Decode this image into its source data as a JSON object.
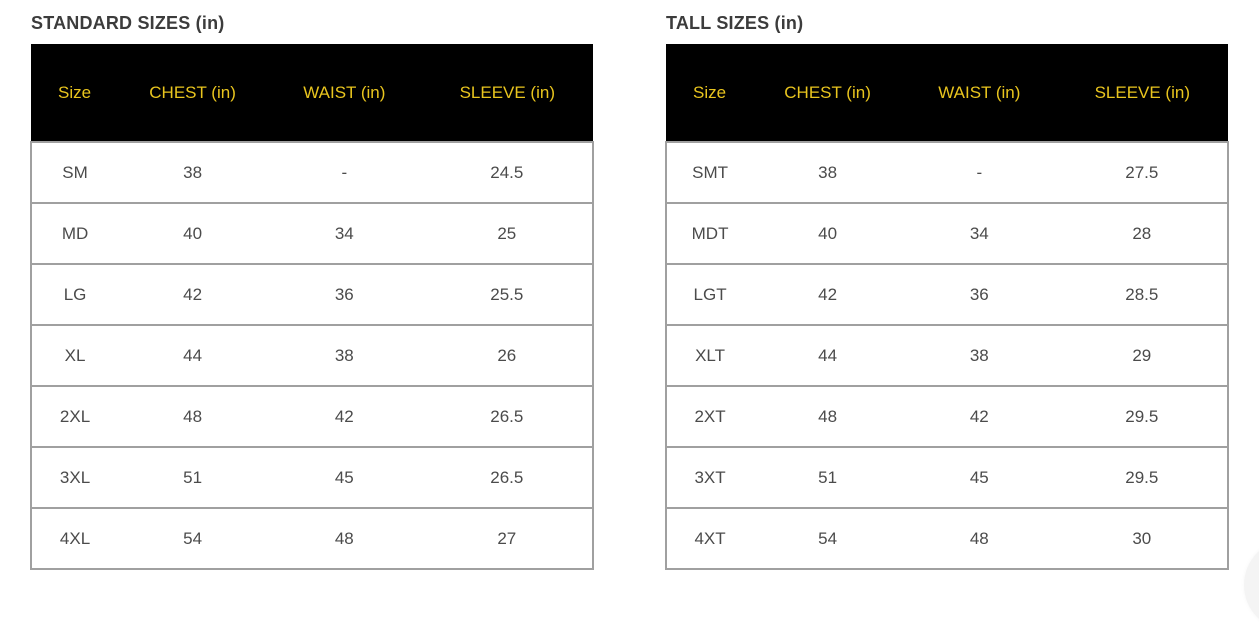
{
  "colors": {
    "header_bg": "#000000",
    "header_text": "#e9c51e",
    "title_text": "#3c3c3c",
    "body_text": "#4b4b4b",
    "row_border": "#a0a0a0",
    "page_bg": "#ffffff"
  },
  "tables": [
    {
      "id": "standard",
      "title": "STANDARD SIZES (in)",
      "columns": [
        "Size",
        "CHEST (in)",
        "WAIST (in)",
        "SLEEVE (in)"
      ],
      "rows": [
        [
          "SM",
          "38",
          "-",
          "24.5"
        ],
        [
          "MD",
          "40",
          "34",
          "25"
        ],
        [
          "LG",
          "42",
          "36",
          "25.5"
        ],
        [
          "XL",
          "44",
          "38",
          "26"
        ],
        [
          "2XL",
          "48",
          "42",
          "26.5"
        ],
        [
          "3XL",
          "51",
          "45",
          "26.5"
        ],
        [
          "4XL",
          "54",
          "48",
          "27"
        ]
      ]
    },
    {
      "id": "tall",
      "title": "TALL SIZES (in)",
      "columns": [
        "Size",
        "CHEST (in)",
        "WAIST (in)",
        "SLEEVE (in)"
      ],
      "rows": [
        [
          "SMT",
          "38",
          "-",
          "27.5"
        ],
        [
          "MDT",
          "40",
          "34",
          "28"
        ],
        [
          "LGT",
          "42",
          "36",
          "28.5"
        ],
        [
          "XLT",
          "44",
          "38",
          "29"
        ],
        [
          "2XT",
          "48",
          "42",
          "29.5"
        ],
        [
          "3XT",
          "51",
          "45",
          "29.5"
        ],
        [
          "4XT",
          "54",
          "48",
          "30"
        ]
      ]
    }
  ],
  "chart_data": [
    {
      "type": "table",
      "title": "STANDARD SIZES (in)",
      "columns": [
        "Size",
        "CHEST (in)",
        "WAIST (in)",
        "SLEEVE (in)"
      ],
      "rows": [
        [
          "SM",
          "38",
          "-",
          "24.5"
        ],
        [
          "MD",
          "40",
          "34",
          "25"
        ],
        [
          "LG",
          "42",
          "36",
          "25.5"
        ],
        [
          "XL",
          "44",
          "38",
          "26"
        ],
        [
          "2XL",
          "48",
          "42",
          "26.5"
        ],
        [
          "3XL",
          "51",
          "45",
          "26.5"
        ],
        [
          "4XL",
          "54",
          "48",
          "27"
        ]
      ]
    },
    {
      "type": "table",
      "title": "TALL SIZES (in)",
      "columns": [
        "Size",
        "CHEST (in)",
        "WAIST (in)",
        "SLEEVE (in)"
      ],
      "rows": [
        [
          "SMT",
          "38",
          "-",
          "27.5"
        ],
        [
          "MDT",
          "40",
          "34",
          "28"
        ],
        [
          "LGT",
          "42",
          "36",
          "28.5"
        ],
        [
          "XLT",
          "44",
          "38",
          "29"
        ],
        [
          "2XT",
          "48",
          "42",
          "29.5"
        ],
        [
          "3XT",
          "51",
          "45",
          "29.5"
        ],
        [
          "4XT",
          "54",
          "48",
          "30"
        ]
      ]
    }
  ]
}
